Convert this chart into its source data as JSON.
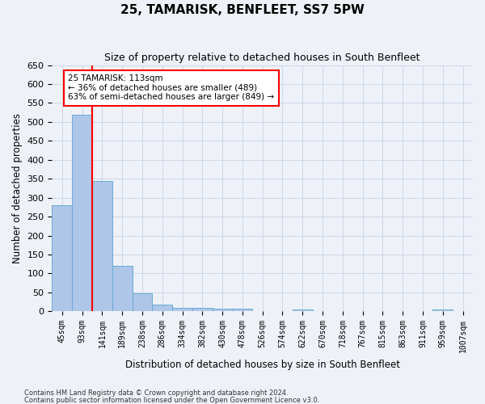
{
  "title": "25, TAMARISK, BENFLEET, SS7 5PW",
  "subtitle": "Size of property relative to detached houses in South Benfleet",
  "xlabel": "Distribution of detached houses by size in South Benfleet",
  "ylabel": "Number of detached properties",
  "bin_labels": [
    "45sqm",
    "93sqm",
    "141sqm",
    "189sqm",
    "238sqm",
    "286sqm",
    "334sqm",
    "382sqm",
    "430sqm",
    "478sqm",
    "526sqm",
    "574sqm",
    "622sqm",
    "670sqm",
    "718sqm",
    "767sqm",
    "815sqm",
    "863sqm",
    "911sqm",
    "959sqm",
    "1007sqm"
  ],
  "bar_values": [
    280,
    520,
    345,
    120,
    48,
    17,
    10,
    10,
    8,
    7,
    0,
    0,
    6,
    0,
    0,
    0,
    0,
    0,
    0,
    6,
    0
  ],
  "bar_color": "#aec6e8",
  "bar_edge_color": "#6aaad4",
  "grid_color": "#d0d8e8",
  "red_line_x": 1.5,
  "annotation_text": "25 TAMARISK: 113sqm\n← 36% of detached houses are smaller (489)\n63% of semi-detached houses are larger (849) →",
  "annotation_box_color": "white",
  "annotation_box_edge": "red",
  "footer_line1": "Contains HM Land Registry data © Crown copyright and database right 2024.",
  "footer_line2": "Contains public sector information licensed under the Open Government Licence v3.0.",
  "ylim": [
    0,
    650
  ],
  "yticks": [
    0,
    50,
    100,
    150,
    200,
    250,
    300,
    350,
    400,
    450,
    500,
    550,
    600,
    650
  ],
  "background_color": "#eef2f8",
  "title_fontsize": 11,
  "subtitle_fontsize": 9
}
